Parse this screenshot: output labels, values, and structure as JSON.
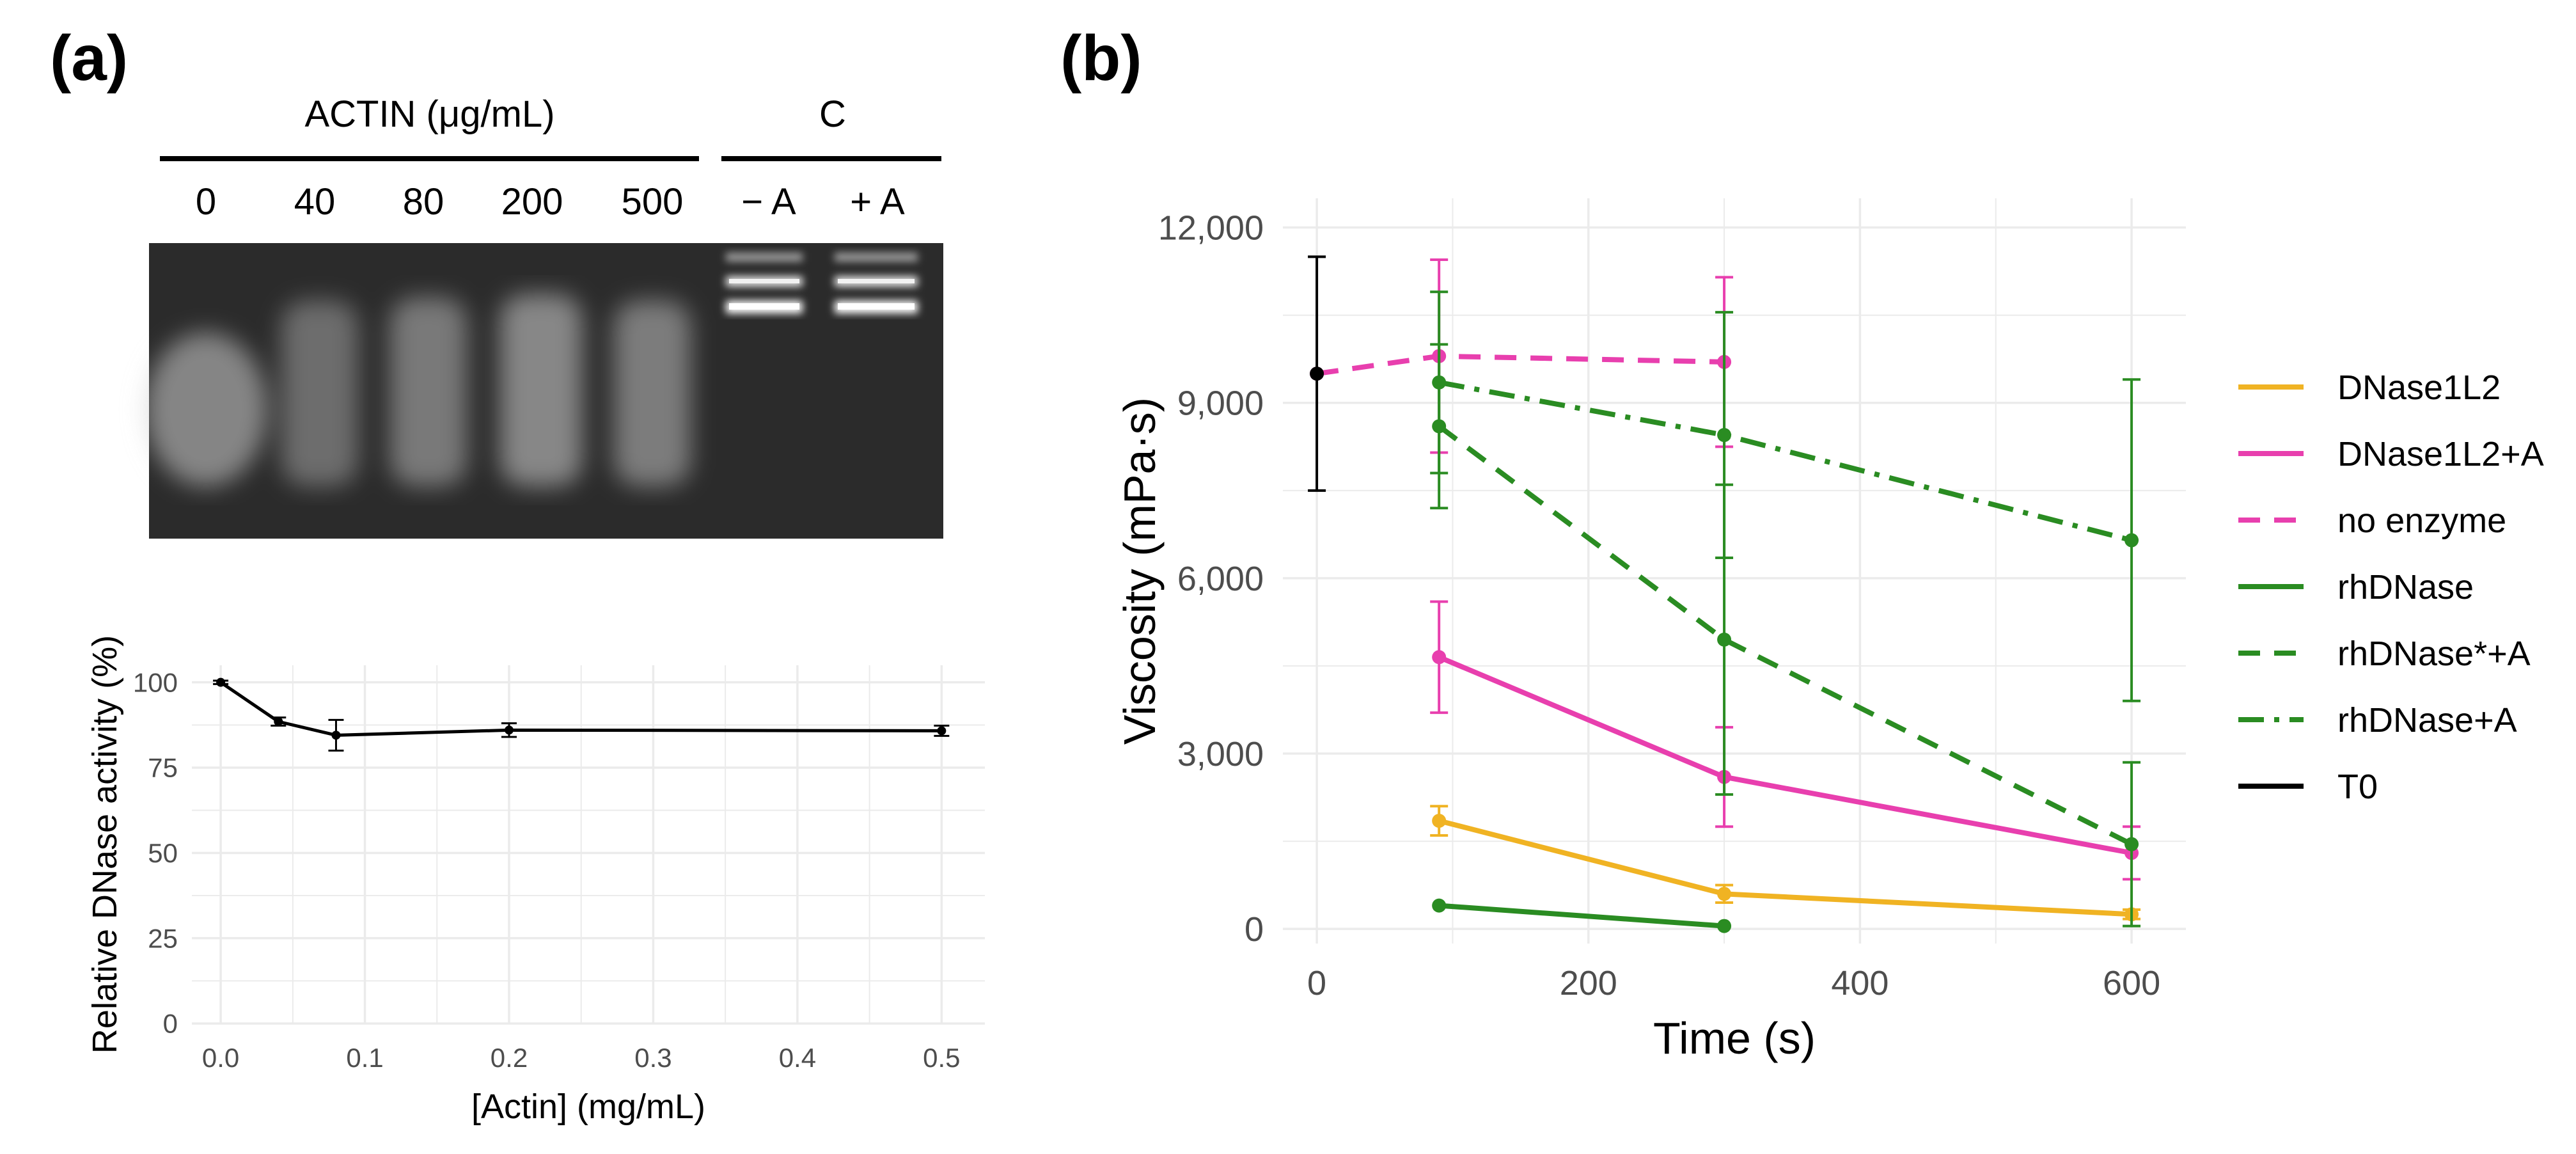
{
  "panel_a": {
    "label": "(a)",
    "gel": {
      "group1_label": "ACTIN (μg/mL)",
      "group2_label": "C",
      "lanes": [
        "0",
        "40",
        "80",
        "200",
        "500",
        "− A",
        "+ A"
      ]
    }
  },
  "panel_b": {
    "label": "(b)"
  },
  "colors": {
    "DNase1L2": "#F0B323",
    "DNase1L2+A": "#E83FAE",
    "rhDNase": "#2A8C22",
    "T0": "#000000",
    "grid": "#EBEBEB"
  },
  "chart_data": [
    {
      "type": "line",
      "xlabel": "[Actin] (mg/mL)",
      "ylabel": "Relative DNase activity (%)",
      "xlim": [
        -0.02,
        0.53
      ],
      "ylim": [
        0,
        105
      ],
      "xticks": [
        "0.0",
        "0.1",
        "0.2",
        "0.3",
        "0.4",
        "0.5"
      ],
      "yticks": [
        "0",
        "25",
        "50",
        "75",
        "100"
      ],
      "grid": true,
      "series": [
        {
          "x": [
            0.0,
            0.04,
            0.08,
            0.2,
            0.5
          ],
          "y": [
            100,
            88.5,
            84.5,
            86,
            85.8
          ],
          "err": [
            0.5,
            1.2,
            4.5,
            2.0,
            1.5
          ],
          "color": "#000000",
          "dash": "solid"
        }
      ]
    },
    {
      "type": "line",
      "xlabel": "Time (s)",
      "ylabel": "Viscosity (mPa·s)",
      "xlim": [
        -25,
        640
      ],
      "ylim": [
        -250,
        12500
      ],
      "xticks": [
        "0",
        "200",
        "400",
        "600"
      ],
      "yticks": [
        "0",
        "3,000",
        "6,000",
        "9,000",
        "12,000"
      ],
      "grid": true,
      "legend_position": "right",
      "series": [
        {
          "name": "DNase1L2",
          "color": "#F0B323",
          "dash": "solid",
          "x": [
            90,
            300,
            600
          ],
          "y": [
            1850,
            600,
            250
          ],
          "err": [
            250,
            150,
            80
          ]
        },
        {
          "name": "DNase1L2+A",
          "color": "#E83FAE",
          "dash": "solid",
          "x": [
            90,
            300,
            600
          ],
          "y": [
            4650,
            2600,
            1300
          ],
          "err": [
            950,
            850,
            450
          ]
        },
        {
          "name": "no enzyme",
          "color": "#E83FAE",
          "dash": "dashed",
          "x": [
            0,
            90,
            300
          ],
          "y": [
            9500,
            9800,
            9700
          ],
          "err": [
            null,
            1650,
            1450
          ]
        },
        {
          "name": "rhDNase",
          "color": "#2A8C22",
          "dash": "solid",
          "x": [
            90,
            300
          ],
          "y": [
            400,
            50
          ],
          "err": [
            null,
            null
          ]
        },
        {
          "name": "rhDNase*+A",
          "color": "#2A8C22",
          "dash": "dashed",
          "x": [
            90,
            300,
            600
          ],
          "y": [
            8600,
            4950,
            1450
          ],
          "err": [
            1400,
            2650,
            1400
          ]
        },
        {
          "name": "rhDNase+A",
          "color": "#2A8C22",
          "dash": "dashdot",
          "x": [
            90,
            300,
            600
          ],
          "y": [
            9350,
            8450,
            6650
          ],
          "err": [
            1550,
            2100,
            2750
          ]
        },
        {
          "name": "T0",
          "color": "#000000",
          "dash": "solid",
          "x": [
            0
          ],
          "y": [
            9500
          ],
          "err": [
            2000
          ]
        }
      ]
    }
  ]
}
